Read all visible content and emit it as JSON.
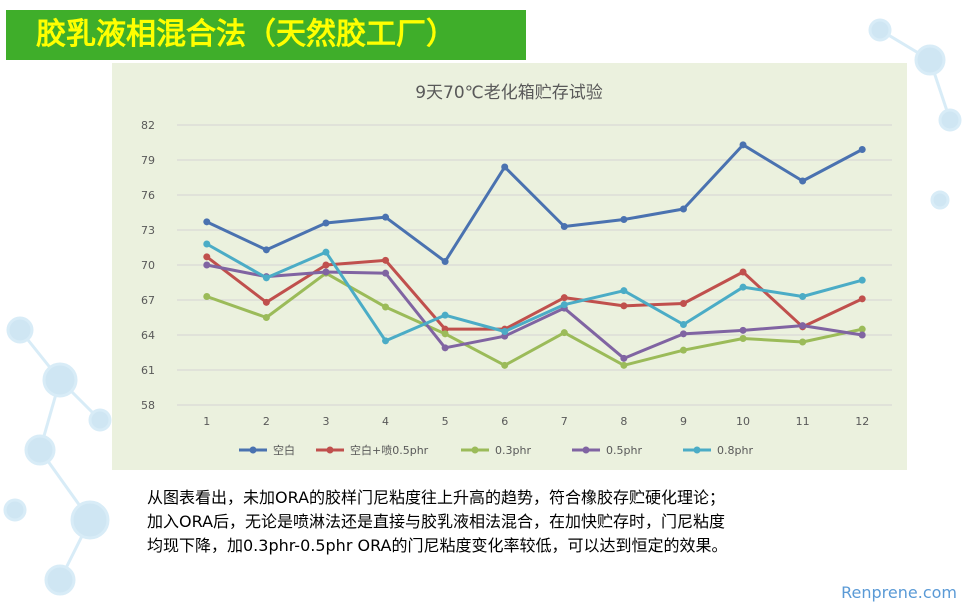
{
  "header": {
    "title": "胶乳液相混合法（天然胶工厂）"
  },
  "chart_data": {
    "type": "line",
    "title": "9天70℃老化箱贮存试验",
    "xlabel": "",
    "ylabel": "",
    "categories": [
      "1",
      "2",
      "3",
      "4",
      "5",
      "6",
      "7",
      "8",
      "9",
      "10",
      "11",
      "12"
    ],
    "y_ticks": [
      "58",
      "61",
      "64",
      "67",
      "70",
      "73",
      "76",
      "79",
      "82"
    ],
    "ylim": [
      58,
      82
    ],
    "grid": true,
    "legend_position": "bottom",
    "series": [
      {
        "name": "空白",
        "color": "#4a72b0",
        "values": [
          73.7,
          71.3,
          73.6,
          74.1,
          70.3,
          78.4,
          73.3,
          73.9,
          74.8,
          80.3,
          77.2,
          79.9
        ]
      },
      {
        "name": "空白+喷0.5phr",
        "color": "#c0504d",
        "values": [
          70.7,
          66.8,
          70.0,
          70.4,
          64.5,
          64.5,
          67.2,
          66.5,
          66.7,
          69.4,
          64.7,
          67.1
        ]
      },
      {
        "name": "0.3phr",
        "color": "#9bbb59",
        "values": [
          67.3,
          65.5,
          69.3,
          66.4,
          64.1,
          61.4,
          64.2,
          61.4,
          62.7,
          63.7,
          63.4,
          64.5
        ]
      },
      {
        "name": "0.5phr",
        "color": "#8064a2",
        "values": [
          70.0,
          69.0,
          69.4,
          69.3,
          62.9,
          63.9,
          66.3,
          62.0,
          64.1,
          64.4,
          64.8,
          64.0
        ]
      },
      {
        "name": "0.8phr",
        "color": "#4bacc6",
        "values": [
          71.8,
          68.9,
          71.1,
          63.5,
          65.7,
          64.3,
          66.6,
          67.8,
          64.9,
          68.1,
          67.3,
          68.7
        ]
      }
    ]
  },
  "description": {
    "line1": "从图表看出，未加ORA的胶样门尼粘度往上升高的趋势，符合橡胶存贮硬化理论；",
    "line2": "加入ORA后，无论是喷淋法还是直接与胶乳液相法混合，在加快贮存时，门尼粘度",
    "line3": "均现下降，加0.3phr-0.5phr ORA的门尼粘度变化率较低，可以达到恒定的效果。"
  },
  "footer": {
    "watermark": "Renprene.com"
  }
}
